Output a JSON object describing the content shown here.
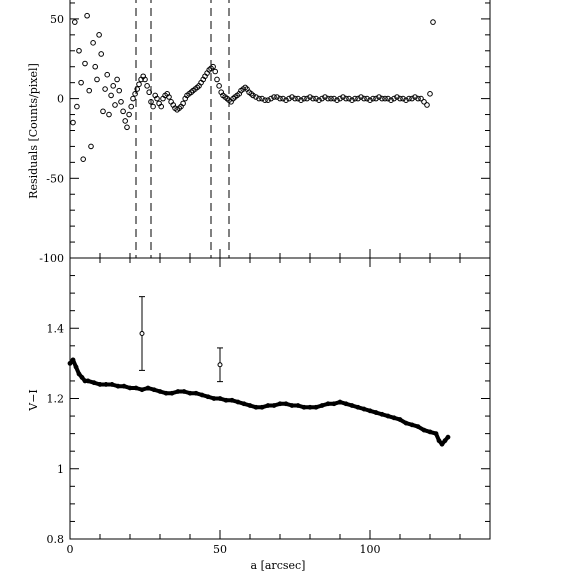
{
  "chart_data": [
    {
      "panel": "top",
      "type": "scatter",
      "ylabel": "Residuals [Counts/pixel]",
      "xlim": [
        0,
        140
      ],
      "ylim": [
        -100,
        65
      ],
      "yticks_labeled": [
        "50",
        "0",
        "-50",
        "-100"
      ],
      "vlines_dashed_x": [
        22,
        27,
        47,
        53
      ],
      "marker": "open-circle",
      "series": [
        {
          "x": [
            1,
            1.6,
            2.3,
            3,
            3.7,
            4.4,
            5,
            5.7,
            6.4,
            7,
            7.7,
            8.4,
            9,
            9.7,
            10.4,
            11,
            11.7,
            12.4,
            13,
            13.7,
            14.4,
            15,
            15.7,
            16.4,
            17,
            17.7,
            18.4,
            19,
            19.7,
            20.4,
            21,
            21.7,
            22.4,
            23,
            23.7,
            24.4,
            25,
            25.7,
            26.4,
            27,
            27.7,
            28.4,
            29,
            29.7,
            30.4,
            31,
            31.7,
            32.4,
            33,
            33.7,
            34.4,
            35,
            35.7,
            36.4,
            37,
            37.7,
            38.4,
            39,
            39.7,
            40.4,
            41,
            41.7,
            42.4,
            43,
            43.7,
            44.4,
            45,
            45.7,
            46.4,
            47,
            47.7,
            48.4,
            49,
            49.7,
            50.4,
            51,
            51.7,
            52.4,
            53,
            53.7,
            54.4,
            55,
            55.7,
            56.4,
            57,
            57.7,
            58.4,
            59,
            59.7,
            60.4,
            61,
            62,
            63,
            64,
            65,
            66,
            67,
            68,
            69,
            70,
            71,
            72,
            73,
            74,
            75,
            76,
            77,
            78,
            79,
            80,
            81,
            82,
            83,
            84,
            85,
            86,
            87,
            88,
            89,
            90,
            91,
            92,
            93,
            94,
            95,
            96,
            97,
            98,
            99,
            100,
            101,
            102,
            103,
            104,
            105,
            106,
            107,
            108,
            109,
            110,
            111,
            112,
            113,
            114,
            115,
            116,
            117,
            118,
            119,
            120,
            121
          ],
          "y": [
            -15,
            48,
            -5,
            30,
            10,
            -38,
            22,
            52,
            5,
            -30,
            35,
            20,
            12,
            40,
            28,
            -8,
            6,
            15,
            -10,
            2,
            8,
            -4,
            12,
            5,
            -2,
            -8,
            -14,
            -18,
            -10,
            -5,
            0,
            3,
            6,
            9,
            12,
            14,
            12,
            8,
            4,
            -2,
            -5,
            2,
            0,
            -3,
            -5,
            0,
            2,
            3,
            1,
            -2,
            -4,
            -6,
            -7,
            -6,
            -5,
            -3,
            0,
            2,
            3,
            4,
            5,
            6,
            7,
            8,
            10,
            12,
            14,
            16,
            18,
            19,
            20,
            17,
            12,
            8,
            4,
            2,
            1,
            0,
            -1,
            -2,
            0,
            1,
            2,
            3,
            5,
            6,
            7,
            6,
            4,
            3,
            2,
            1,
            0,
            0,
            -1,
            -1,
            0,
            1,
            1,
            0,
            0,
            -1,
            0,
            1,
            0,
            0,
            -1,
            0,
            0,
            1,
            0,
            0,
            -1,
            0,
            1,
            0,
            0,
            0,
            -1,
            0,
            1,
            0,
            0,
            -1,
            0,
            0,
            1,
            0,
            0,
            -1,
            0,
            0,
            1,
            0,
            0,
            0,
            -1,
            0,
            1,
            0,
            0,
            -1,
            0,
            0,
            1,
            0,
            0,
            -2,
            -4,
            3,
            48
          ]
        }
      ]
    },
    {
      "panel": "bottom",
      "type": "line",
      "xlabel": "a [arcsec]",
      "ylabel": "V−I",
      "xlim": [
        0,
        140
      ],
      "ylim": [
        0.8,
        1.6
      ],
      "yticks_labeled": [
        "1.4",
        "1.2",
        "1",
        "0.8"
      ],
      "xticks_labeled": [
        "0",
        "50",
        "100"
      ],
      "series": [
        {
          "x": [
            0,
            1,
            2,
            3,
            4,
            5,
            6,
            8,
            10,
            12,
            14,
            16,
            18,
            20,
            22,
            24,
            26,
            28,
            30,
            32,
            34,
            36,
            38,
            40,
            42,
            44,
            46,
            48,
            50,
            52,
            54,
            56,
            58,
            60,
            62,
            64,
            66,
            68,
            70,
            72,
            74,
            76,
            78,
            80,
            82,
            84,
            86,
            88,
            90,
            92,
            94,
            96,
            98,
            100,
            102,
            104,
            106,
            108,
            110,
            112,
            114,
            116,
            118,
            120,
            122,
            123,
            124,
            125,
            126
          ],
          "y": [
            1.3,
            1.31,
            1.29,
            1.27,
            1.26,
            1.25,
            1.25,
            1.245,
            1.24,
            1.24,
            1.24,
            1.235,
            1.235,
            1.23,
            1.23,
            1.225,
            1.23,
            1.225,
            1.22,
            1.215,
            1.215,
            1.22,
            1.22,
            1.215,
            1.215,
            1.21,
            1.205,
            1.2,
            1.2,
            1.195,
            1.195,
            1.19,
            1.185,
            1.18,
            1.175,
            1.175,
            1.18,
            1.18,
            1.185,
            1.185,
            1.18,
            1.18,
            1.175,
            1.175,
            1.175,
            1.18,
            1.185,
            1.185,
            1.19,
            1.185,
            1.18,
            1.175,
            1.17,
            1.165,
            1.16,
            1.155,
            1.15,
            1.145,
            1.14,
            1.13,
            1.125,
            1.12,
            1.11,
            1.105,
            1.1,
            1.08,
            1.07,
            1.08,
            1.09
          ]
        }
      ],
      "error_points": [
        {
          "x": 24,
          "y": 1.385,
          "err": 0.105
        },
        {
          "x": 50,
          "y": 1.296,
          "err": 0.048
        }
      ]
    }
  ]
}
